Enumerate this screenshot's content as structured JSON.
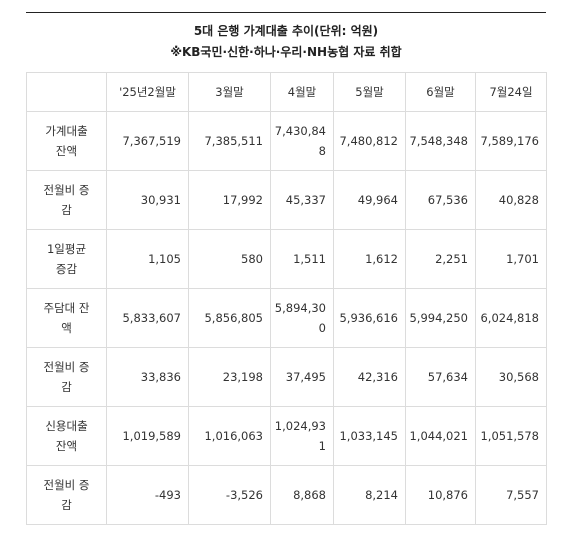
{
  "title": "5대 은행 가계대출 추이(단위: 억원)",
  "subtitle": "※KB국민·신한·하나·우리·NH농협 자료 취합",
  "headers": [
    "",
    "'25년2월말",
    "3월말",
    "4월말",
    "5월말",
    "6월말",
    "7월24일"
  ],
  "rows": [
    {
      "label": "가계대출 잔액",
      "values": [
        "7,367,519",
        "7,385,511",
        "7,430,848",
        "7,480,812",
        "7,548,348",
        "7,589,176"
      ]
    },
    {
      "label": "전월비 증감",
      "values": [
        "30,931",
        "17,992",
        "45,337",
        "49,964",
        "67,536",
        "40,828"
      ]
    },
    {
      "label": "1일평균 증감",
      "values": [
        "1,105",
        "580",
        "1,511",
        "1,612",
        "2,251",
        "1,701"
      ]
    },
    {
      "label": "주담대 잔액",
      "values": [
        "5,833,607",
        "5,856,805",
        "5,894,300",
        "5,936,616",
        "5,994,250",
        "6,024,818"
      ]
    },
    {
      "label": "전월비 증감",
      "values": [
        "33,836",
        "23,198",
        "37,495",
        "42,316",
        "57,634",
        "30,568"
      ]
    },
    {
      "label": "신용대출 잔액",
      "values": [
        "1,019,589",
        "1,016,063",
        "1,024,931",
        "1,033,145",
        "1,044,021",
        "1,051,578"
      ]
    },
    {
      "label": "전월비 증감",
      "values": [
        "-493",
        "-3,526",
        "8,868",
        "8,214",
        "10,876",
        "7,557"
      ]
    }
  ]
}
